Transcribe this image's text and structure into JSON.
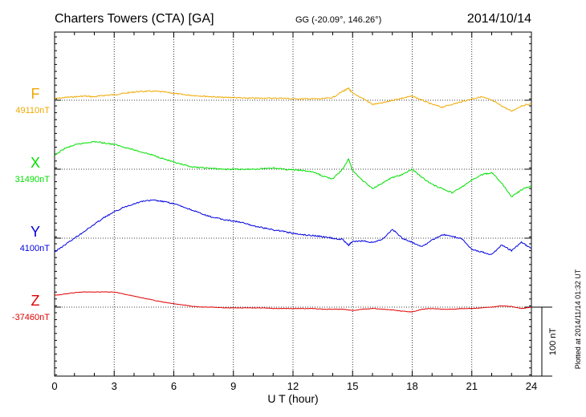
{
  "chart_data": {
    "type": "line",
    "title": "Charters Towers (CTA)  [GA]",
    "subtitle": "GG (-20.09°, 146.26°)",
    "date": "2014/10/14",
    "xlabel": "U T (hour)",
    "xlim": [
      0,
      24
    ],
    "xticks": [
      "0",
      "3",
      "6",
      "9",
      "12",
      "15",
      "18",
      "21",
      "24"
    ],
    "scale_label": "100 nT",
    "footer": "Plotted at 2014/11/14 01:32 UT",
    "grid": true,
    "series": [
      {
        "name": "F",
        "baseline_label": "49110nT",
        "baseline": 49110,
        "color": "#f0a800",
        "x": [
          0,
          0.5,
          1,
          1.5,
          2,
          2.5,
          3,
          3.5,
          4,
          4.5,
          5,
          5.5,
          6,
          6.5,
          7,
          7.5,
          8,
          8.5,
          9,
          9.5,
          10,
          10.5,
          11,
          11.5,
          12,
          12.5,
          13,
          13.5,
          14,
          14.5,
          14.8,
          15,
          15.5,
          16,
          16.5,
          17,
          17.5,
          18,
          18.5,
          19,
          19.5,
          20,
          20.5,
          21,
          21.5,
          22,
          22.5,
          23,
          23.5,
          24
        ],
        "values": [
          49112,
          49114,
          49115,
          49116,
          49115,
          49117,
          49118,
          49120,
          49122,
          49123,
          49123,
          49122,
          49120,
          49118,
          49117,
          49116,
          49115,
          49114,
          49114,
          49113,
          49113,
          49113,
          49113,
          49113,
          49112,
          49112,
          49112,
          49112,
          49114,
          49123,
          49127,
          49120,
          49113,
          49104,
          49106,
          49110,
          49113,
          49116,
          49110,
          49104,
          49100,
          49104,
          49108,
          49112,
          49115,
          49110,
          49102,
          49094,
          49102,
          49105
        ]
      },
      {
        "name": "X",
        "baseline_label": "31490nT",
        "baseline": 31490,
        "color": "#00e000",
        "x": [
          0,
          0.5,
          1,
          1.5,
          2,
          2.5,
          3,
          3.5,
          4,
          4.5,
          5,
          5.5,
          6,
          6.5,
          7,
          7.5,
          8,
          8.5,
          9,
          9.5,
          10,
          10.5,
          11,
          11.5,
          12,
          12.5,
          13,
          13.5,
          14,
          14.5,
          14.8,
          15,
          15.5,
          16,
          16.5,
          17,
          17.5,
          18,
          18.5,
          19,
          19.5,
          20,
          20.5,
          21,
          21.5,
          22,
          22.5,
          23,
          23.5,
          24
        ],
        "values": [
          31510,
          31520,
          31525,
          31528,
          31530,
          31528,
          31526,
          31522,
          31518,
          31514,
          31510,
          31505,
          31500,
          31496,
          31493,
          31492,
          31491,
          31490,
          31490,
          31490,
          31490,
          31491,
          31492,
          31490,
          31489,
          31488,
          31486,
          31480,
          31476,
          31490,
          31505,
          31488,
          31474,
          31462,
          31470,
          31478,
          31482,
          31490,
          31478,
          31468,
          31462,
          31456,
          31464,
          31474,
          31482,
          31485,
          31470,
          31450,
          31460,
          31466
        ]
      },
      {
        "name": "Y",
        "baseline_label": "4100nT",
        "baseline": 4100,
        "color": "#0000e0",
        "x": [
          0,
          0.5,
          1,
          1.5,
          2,
          2.5,
          3,
          3.5,
          4,
          4.5,
          5,
          5.5,
          6,
          6.5,
          7,
          7.5,
          8,
          8.5,
          9,
          9.5,
          10,
          10.5,
          11,
          11.5,
          12,
          12.5,
          13,
          13.5,
          14,
          14.5,
          14.8,
          15,
          15.5,
          16,
          16.5,
          17,
          17.5,
          18,
          18.5,
          19,
          19.5,
          20,
          20.5,
          21,
          21.5,
          22,
          22.5,
          23,
          23.5,
          24
        ],
        "values": [
          4080,
          4090,
          4100,
          4110,
          4120,
          4130,
          4138,
          4145,
          4150,
          4154,
          4155,
          4153,
          4150,
          4145,
          4140,
          4134,
          4130,
          4127,
          4125,
          4122,
          4118,
          4115,
          4112,
          4110,
          4107,
          4105,
          4104,
          4102,
          4100,
          4098,
          4090,
          4095,
          4096,
          4094,
          4098,
          4113,
          4100,
          4094,
          4088,
          4097,
          4105,
          4103,
          4099,
          4084,
          4080,
          4076,
          4090,
          4082,
          4094,
          4085
        ]
      },
      {
        "name": "Z",
        "baseline_label": "-37460nT",
        "baseline": -37460,
        "color": "#e00000",
        "x": [
          0,
          0.5,
          1,
          1.5,
          2,
          2.5,
          3,
          3.5,
          4,
          4.5,
          5,
          5.5,
          6,
          6.5,
          7,
          7.5,
          8,
          8.5,
          9,
          9.5,
          10,
          10.5,
          11,
          11.5,
          12,
          12.5,
          13,
          13.5,
          14,
          14.5,
          15,
          15.5,
          16,
          16.5,
          17,
          17.5,
          18,
          18.5,
          19,
          19.5,
          20,
          20.5,
          21,
          21.5,
          22,
          22.5,
          23,
          23.5,
          24
        ],
        "values": [
          -37443,
          -37441,
          -37439,
          -37438,
          -37438,
          -37438,
          -37438,
          -37441,
          -37444,
          -37447,
          -37450,
          -37453,
          -37455,
          -37457,
          -37459,
          -37460,
          -37460,
          -37461,
          -37461,
          -37461,
          -37461,
          -37461,
          -37462,
          -37462,
          -37462,
          -37462,
          -37462,
          -37463,
          -37463,
          -37463,
          -37465,
          -37463,
          -37462,
          -37463,
          -37464,
          -37466,
          -37467,
          -37463,
          -37462,
          -37463,
          -37463,
          -37462,
          -37462,
          -37461,
          -37460,
          -37458,
          -37459,
          -37462,
          -37460
        ]
      }
    ]
  }
}
